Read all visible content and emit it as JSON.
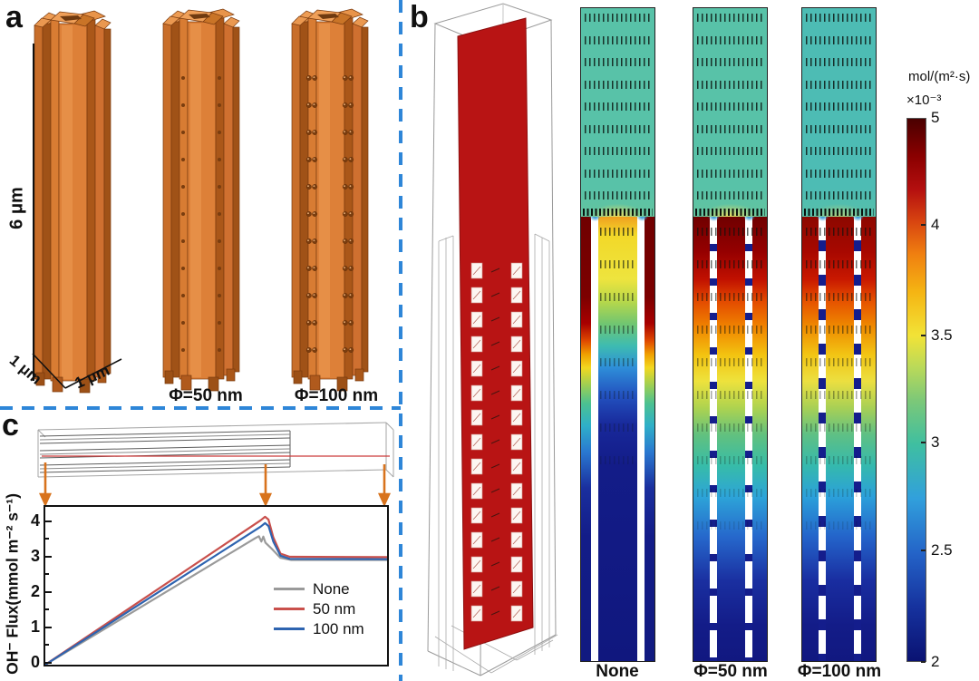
{
  "figure": {
    "panel_a": {
      "label": "a",
      "height_label": "6 μm",
      "base_label_left": "1 μm",
      "base_label_right": "1 μm",
      "pillars": [
        {
          "name": "pillar-solid",
          "label": ""
        },
        {
          "name": "pillar-pores-50nm",
          "label": "Φ=50 nm"
        },
        {
          "name": "pillar-pores-100nm",
          "label": "Φ=100 nm"
        }
      ]
    },
    "panel_b": {
      "label": "b",
      "maps": [
        {
          "label": "None"
        },
        {
          "label": "Φ=50 nm"
        },
        {
          "label": "Φ=100 nm"
        }
      ],
      "colorbar": {
        "title": "mol/(m²·s)",
        "multiplier": "×10⁻³",
        "ticks": [
          "5",
          "4",
          "3.5",
          "3",
          "2.5",
          "2"
        ],
        "tick_positions_pct": [
          0,
          19.7,
          40,
          59.7,
          79.5,
          100
        ]
      }
    },
    "panel_c": {
      "label": "c"
    },
    "colors": {
      "copper": "#d4762e",
      "separator_blue": "#2e86d8",
      "slice_red": "#b81414",
      "map_navy": "#131c88",
      "map_teal": "#57c1a8",
      "arrow_orange": "#d8731d"
    }
  },
  "chart_data": {
    "type": "line",
    "title": "",
    "xlabel": "",
    "ylabel": "OH⁻ Flux(mmol m⁻² s⁻¹)",
    "xlim": [
      0,
      1
    ],
    "ylim": [
      0,
      4.46
    ],
    "yticks": [
      0,
      1,
      2,
      3,
      4
    ],
    "grid": false,
    "legend_position": "lower right",
    "series": [
      {
        "name": "None",
        "color": "#9a9a9a",
        "x": [
          0,
          0.615,
          0.625,
          0.632,
          0.638,
          0.644,
          0.662,
          0.688,
          0.72,
          1.0
        ],
        "y": [
          0,
          3.58,
          3.63,
          3.48,
          3.62,
          3.45,
          3.28,
          3.02,
          2.96,
          2.96
        ]
      },
      {
        "name": "50 nm",
        "color": "#c9504c",
        "x": [
          0,
          0.63,
          0.643,
          0.653,
          0.667,
          0.688,
          0.715,
          1.0
        ],
        "y": [
          0,
          4.08,
          4.18,
          4.1,
          3.6,
          3.14,
          3.05,
          3.04
        ]
      },
      {
        "name": "100 nm",
        "color": "#2e64b0",
        "x": [
          0,
          0.63,
          0.643,
          0.653,
          0.667,
          0.688,
          0.715,
          1.0
        ],
        "y": [
          0,
          3.9,
          4.0,
          3.92,
          3.48,
          3.08,
          2.99,
          2.98
        ]
      }
    ]
  }
}
